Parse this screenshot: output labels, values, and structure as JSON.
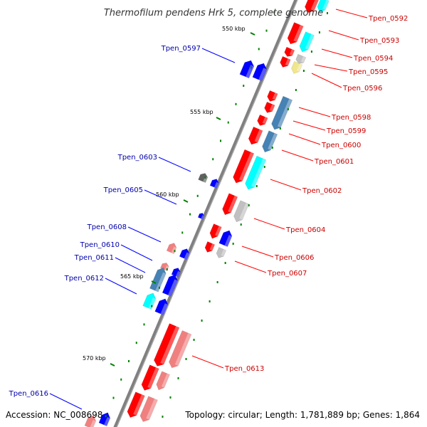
{
  "title": "Thermofilum pendens Hrk 5, complete genome",
  "accession": "Accession: NC_008698",
  "topology": "Topology: circular; Length: 1,781,889 bp; Genes: 1,864",
  "tick_labels": [
    "550 kbp",
    "555 kbp",
    "560 kbp",
    "565 kbp",
    "570 kbp"
  ],
  "colors": {
    "forward_label": "#cc0000",
    "reverse_label": "#0000aa",
    "backbone": "#808080",
    "tick": "#008000",
    "red": "#ff0000",
    "blue": "#0000ff",
    "cyan": "#00ffff",
    "steelblue": "#4682b4",
    "pink": "#f08080",
    "gray": "#c0c0c0",
    "darkgray": "#606060",
    "yellow": "#f0e68c"
  },
  "forward_genes": [
    "Tpen_0592",
    "Tpen_0593",
    "Tpen_0594",
    "Tpen_0595",
    "Tpen_0596",
    "Tpen_0598",
    "Tpen_0599",
    "Tpen_0600",
    "Tpen_0601",
    "Tpen_0602",
    "Tpen_0604",
    "Tpen_0606",
    "Tpen_0607",
    "Tpen_0613"
  ],
  "reverse_genes": [
    "Tpen_0597",
    "Tpen_0603",
    "Tpen_0605",
    "Tpen_0608",
    "Tpen_0610",
    "Tpen_0611",
    "Tpen_0612",
    "Tpen_0616"
  ]
}
